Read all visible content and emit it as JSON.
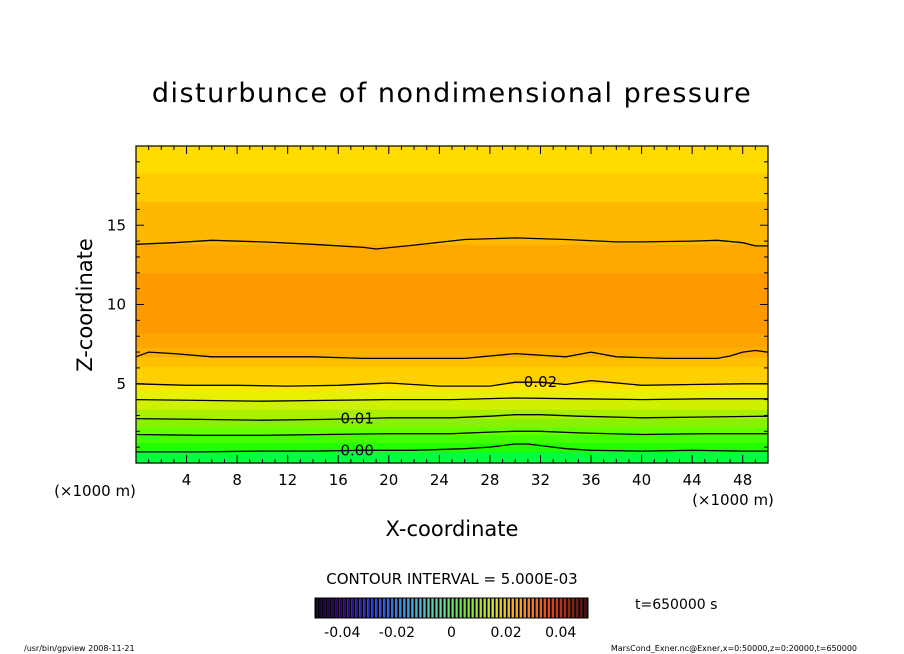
{
  "chart_data": {
    "type": "contour",
    "title": "disturbunce of nondimensional pressure",
    "xlabel": "X-coordinate",
    "ylabel": "Z-coordinate",
    "x_unit": "(×1000 m)",
    "y_unit": "(×1000 m)",
    "xlim": [
      0,
      50
    ],
    "ylim": [
      0,
      20
    ],
    "x_ticks": [
      4,
      8,
      12,
      16,
      20,
      24,
      28,
      32,
      36,
      40,
      44,
      48
    ],
    "y_ticks": [
      5,
      10,
      15
    ],
    "contour_interval_label": "CONTOUR INTERVAL = 5.000E-03",
    "contour_labels": [
      {
        "text": "0.02",
        "x": 32,
        "y": 5.1
      },
      {
        "text": "0.01",
        "x": 17.5,
        "y": 2.8
      },
      {
        "text": "0.00",
        "x": 17.5,
        "y": 0.8
      }
    ],
    "contour_lines": [
      {
        "level": 0.0,
        "x": [
          0,
          5,
          10,
          14,
          18,
          22,
          26,
          28,
          30,
          31,
          32,
          34,
          36,
          40,
          44,
          48,
          50
        ],
        "y": [
          0.7,
          0.7,
          0.75,
          0.75,
          0.8,
          0.8,
          0.9,
          1.0,
          1.2,
          1.2,
          1.1,
          0.9,
          0.8,
          0.75,
          0.8,
          0.75,
          0.75
        ]
      },
      {
        "level": 0.005,
        "x": [
          0,
          5,
          10,
          15,
          20,
          25,
          28,
          30,
          32,
          35,
          40,
          45,
          50
        ],
        "y": [
          1.8,
          1.75,
          1.75,
          1.8,
          1.85,
          1.85,
          1.95,
          2.0,
          2.0,
          1.9,
          1.8,
          1.85,
          1.85
        ]
      },
      {
        "level": 0.01,
        "x": [
          0,
          5,
          10,
          15,
          20,
          25,
          28,
          30,
          32,
          35,
          40,
          45,
          50
        ],
        "y": [
          2.8,
          2.75,
          2.7,
          2.75,
          2.85,
          2.85,
          2.95,
          3.05,
          3.05,
          2.95,
          2.85,
          2.9,
          2.95
        ]
      },
      {
        "level": 0.015,
        "x": [
          0,
          5,
          10,
          15,
          20,
          25,
          30,
          35,
          40,
          45,
          50
        ],
        "y": [
          4.0,
          3.95,
          3.9,
          3.95,
          4.0,
          4.0,
          4.1,
          4.05,
          4.0,
          4.05,
          4.05
        ]
      },
      {
        "level": 0.02,
        "x": [
          0,
          4,
          8,
          12,
          16,
          20,
          24,
          28,
          30,
          32,
          34,
          36,
          40,
          44,
          48,
          50
        ],
        "y": [
          5.0,
          4.9,
          4.9,
          4.85,
          4.9,
          5.05,
          4.85,
          4.85,
          5.1,
          5.1,
          4.95,
          5.2,
          4.9,
          4.95,
          5.0,
          5.0
        ]
      },
      {
        "level": 0.02,
        "x": [
          0,
          1,
          3,
          6,
          10,
          14,
          18,
          22,
          26,
          30,
          34,
          36,
          38,
          42,
          46,
          47,
          48,
          49,
          50
        ],
        "y": [
          6.7,
          7.0,
          6.9,
          6.7,
          6.7,
          6.7,
          6.6,
          6.6,
          6.6,
          6.9,
          6.7,
          7.0,
          6.7,
          6.6,
          6.6,
          6.75,
          7.0,
          7.1,
          7.0
        ]
      },
      {
        "level": 0.02,
        "x": [
          0,
          3,
          6,
          10,
          14,
          18,
          19,
          22,
          26,
          30,
          34,
          38,
          40,
          44,
          46,
          48,
          49,
          50
        ],
        "y": [
          13.8,
          13.9,
          14.05,
          13.95,
          13.8,
          13.6,
          13.5,
          13.75,
          14.1,
          14.2,
          14.1,
          13.95,
          13.95,
          14.0,
          14.05,
          13.9,
          13.7,
          13.7
        ]
      }
    ],
    "color_regions": [
      {
        "z_range": [
          0,
          0.7
        ],
        "color": "#00ff40"
      },
      {
        "z_range": [
          0.7,
          1.3
        ],
        "color": "#22ff00"
      },
      {
        "z_range": [
          1.3,
          1.8
        ],
        "color": "#44ff00"
      },
      {
        "z_range": [
          1.8,
          2.3
        ],
        "color": "#66ff00"
      },
      {
        "z_range": [
          2.3,
          2.8
        ],
        "color": "#88f000"
      },
      {
        "z_range": [
          2.8,
          3.4
        ],
        "color": "#a8f000"
      },
      {
        "z_range": [
          3.4,
          4.0
        ],
        "color": "#cff000"
      },
      {
        "z_range": [
          4.0,
          4.6
        ],
        "color": "#e6f000"
      },
      {
        "z_range": [
          4.6,
          5.0
        ],
        "color": "#ffe600"
      },
      {
        "z_range": [
          5.0,
          6.1
        ],
        "color": "#ffd000"
      },
      {
        "z_range": [
          6.1,
          6.7
        ],
        "color": "#ffc000"
      },
      {
        "z_range": [
          6.7,
          7.3
        ],
        "color": "#ffb000"
      },
      {
        "z_range": [
          7.3,
          8.2
        ],
        "color": "#ffa500"
      },
      {
        "z_range": [
          8.2,
          12.0
        ],
        "color": "#ff9900"
      },
      {
        "z_range": [
          12.0,
          13.8
        ],
        "color": "#ffa800"
      },
      {
        "z_range": [
          13.8,
          16.5
        ],
        "color": "#ffb800"
      },
      {
        "z_range": [
          16.5,
          18.3
        ],
        "color": "#ffcc00"
      },
      {
        "z_range": [
          18.3,
          20
        ],
        "color": "#ffdc00"
      }
    ],
    "colorbar": {
      "range": [
        -0.05,
        0.05
      ],
      "tick_labels": [
        "-0.04",
        "-0.02",
        "0",
        "0.02",
        "0.04"
      ],
      "tick_values": [
        -0.04,
        -0.02,
        0,
        0.02,
        0.04
      ]
    },
    "grid": false
  },
  "labels": {
    "time": "t=650000 s",
    "footer_left": "/usr/bin/gpview   2008-11-21",
    "footer_right": "MarsCond_Exner.nc@Exner,x=0:50000,z=0:20000,t=650000"
  }
}
